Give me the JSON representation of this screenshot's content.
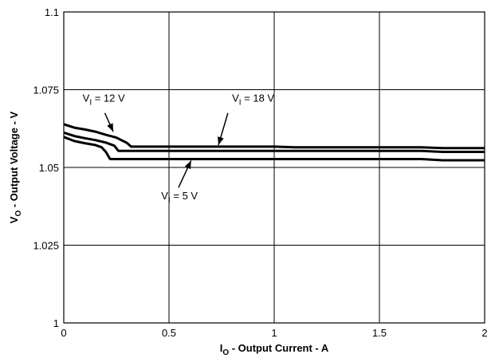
{
  "chart_data": {
    "type": "line",
    "xlabel": {
      "main": "I",
      "sub": "O",
      "rest": " - Output Current - A"
    },
    "ylabel": {
      "main": "V",
      "sub": "O",
      "rest": " - Output Voltage - V"
    },
    "xlim": [
      0,
      2
    ],
    "ylim": [
      1,
      1.1
    ],
    "grid": true,
    "x_ticks": [
      0,
      0.5,
      1,
      1.5,
      2
    ],
    "x_tick_labels": [
      "0",
      "0.5",
      "1",
      "1.5",
      "2"
    ],
    "y_ticks": [
      1,
      1.025,
      1.05,
      1.075,
      1.1
    ],
    "y_tick_labels": [
      "1",
      "1.025",
      "1.05",
      "1.075",
      "1.1"
    ],
    "series": [
      {
        "name": "VI = 18 V",
        "x": [
          0,
          0.05,
          0.1,
          0.15,
          0.2,
          0.25,
          0.3,
          0.32,
          0.5,
          1.0,
          1.1,
          1.5,
          1.7,
          1.8,
          2.0
        ],
        "y": [
          1.0639,
          1.0628,
          1.0622,
          1.0615,
          1.0605,
          1.0596,
          1.0579,
          1.0567,
          1.0567,
          1.0567,
          1.0565,
          1.0565,
          1.0565,
          1.0562,
          1.0562
        ]
      },
      {
        "name": "VI = 12 V",
        "x": [
          0,
          0.05,
          0.1,
          0.15,
          0.2,
          0.24,
          0.26,
          0.5,
          1.0,
          1.5,
          1.7,
          1.8,
          2.0
        ],
        "y": [
          1.0612,
          1.0601,
          1.0594,
          1.0588,
          1.058,
          1.057,
          1.0553,
          1.0553,
          1.0553,
          1.0553,
          1.0553,
          1.055,
          1.055
        ]
      },
      {
        "name": "VI = 5 V",
        "x": [
          0,
          0.05,
          0.1,
          0.15,
          0.18,
          0.2,
          0.22,
          0.5,
          1.0,
          1.5,
          1.7,
          1.8,
          2.0
        ],
        "y": [
          1.0598,
          1.0585,
          1.0578,
          1.0572,
          1.0565,
          1.055,
          1.0527,
          1.0527,
          1.0527,
          1.0527,
          1.0527,
          1.0523,
          1.0523
        ]
      }
    ],
    "annotations": [
      {
        "label": {
          "main": "V",
          "sub": "I",
          "rest": " = 12 V"
        },
        "text_x": 0.19,
        "text_y": 1.0712,
        "arrow_from": [
          0.195,
          1.0675
        ],
        "arrow_to": [
          0.235,
          1.0615
        ]
      },
      {
        "label": {
          "main": "V",
          "sub": "I",
          "rest": " = 18 V"
        },
        "text_x": 0.9,
        "text_y": 1.0712,
        "arrow_from": [
          0.78,
          1.0675
        ],
        "arrow_to": [
          0.735,
          1.0572
        ]
      },
      {
        "label": {
          "main": "V",
          "sub": "I",
          "rest": " = 5 V"
        },
        "text_x": 0.55,
        "text_y": 1.0398,
        "arrow_from": [
          0.545,
          1.0435
        ],
        "arrow_to": [
          0.605,
          1.0522
        ]
      }
    ]
  }
}
